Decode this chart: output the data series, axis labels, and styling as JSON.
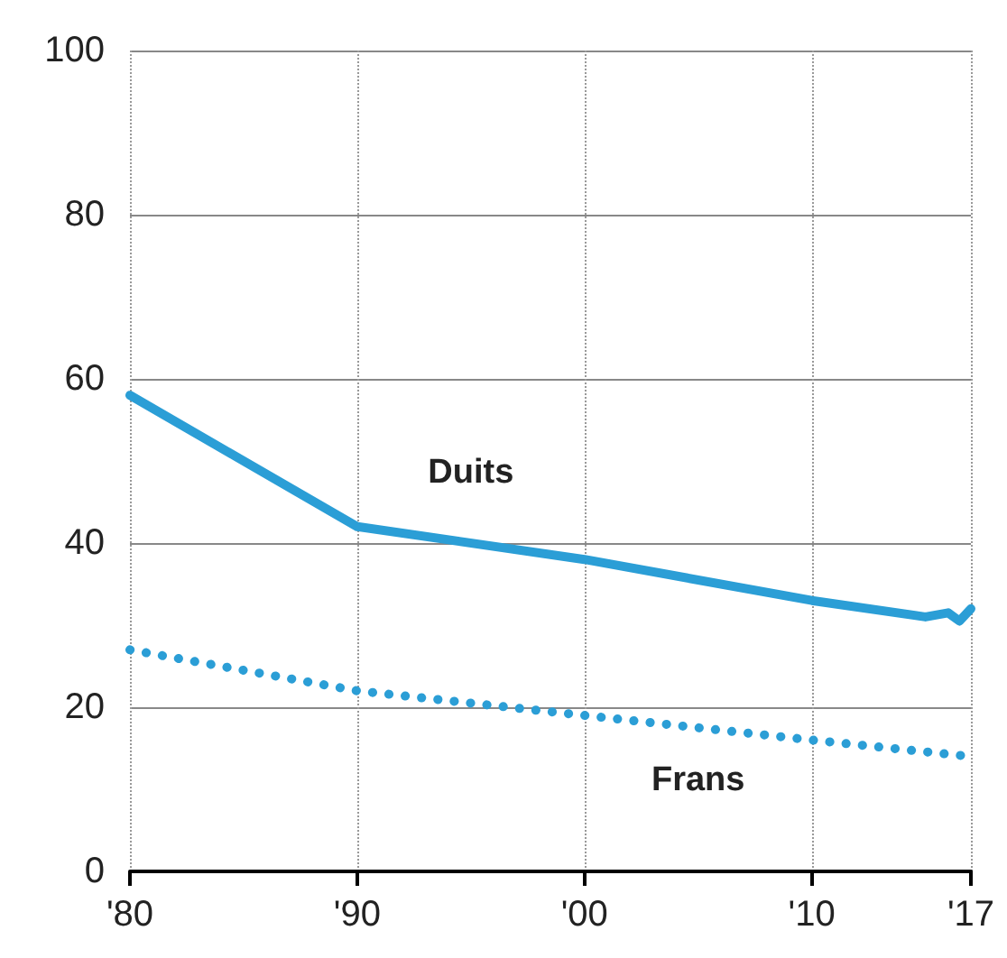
{
  "chart_data": {
    "type": "line",
    "xlim": [
      1980,
      2017
    ],
    "xticks": [
      {
        "value": 1980,
        "label": "'80"
      },
      {
        "value": 1990,
        "label": "'90"
      },
      {
        "value": 2000,
        "label": "'00"
      },
      {
        "value": 2010,
        "label": "'10"
      },
      {
        "value": 2017,
        "label": "'17"
      }
    ],
    "ylim": [
      0,
      100
    ],
    "yticks": [
      0,
      20,
      40,
      60,
      80,
      100
    ],
    "grid": true,
    "marker": "none",
    "series": [
      {
        "name": "Duits",
        "color": "#2b9ed6",
        "line_style": "solid",
        "x": [
          1980,
          1990,
          2000,
          2010,
          2015,
          2016,
          2016.5,
          2017
        ],
        "values": [
          58,
          42,
          38,
          33,
          31,
          31.5,
          30.5,
          32
        ]
      },
      {
        "name": "Frans",
        "color": "#2b9ed6",
        "line_style": "dotted",
        "x": [
          1980,
          1990,
          2000,
          2010,
          2017
        ],
        "values": [
          27,
          22,
          19,
          16,
          14
        ]
      }
    ]
  }
}
